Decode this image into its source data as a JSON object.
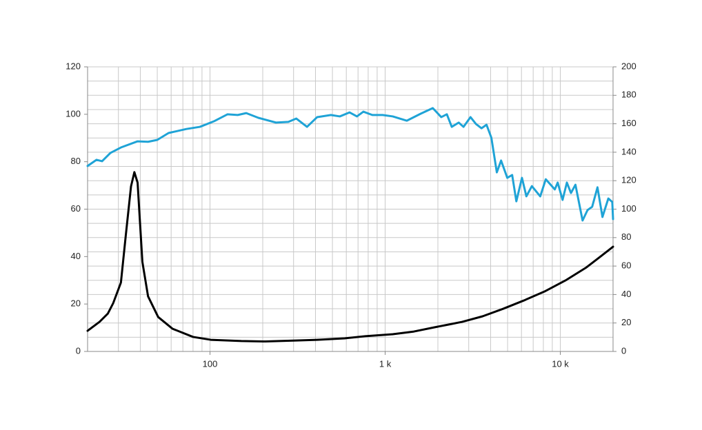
{
  "chart_data": {
    "type": "line",
    "xscale": "log",
    "grid": true,
    "xlim": [
      20,
      20000
    ],
    "xticks": [
      {
        "value": 100,
        "label": "100"
      },
      {
        "value": 1000,
        "label": "1 k"
      },
      {
        "value": 10000,
        "label": "10 k"
      }
    ],
    "xgrid": [
      20,
      30,
      40,
      50,
      60,
      70,
      80,
      90,
      100,
      200,
      300,
      400,
      500,
      600,
      700,
      800,
      900,
      1000,
      2000,
      3000,
      4000,
      5000,
      6000,
      7000,
      8000,
      9000,
      10000,
      20000
    ],
    "ylim": [
      0,
      120
    ],
    "yticks": [
      0,
      20,
      40,
      60,
      80,
      100,
      120
    ],
    "y2lim": [
      0,
      200
    ],
    "y2ticks": [
      0,
      20,
      40,
      60,
      80,
      100,
      120,
      140,
      160,
      180,
      200
    ],
    "y2grid": [
      0,
      10,
      20,
      30,
      40,
      50,
      60,
      70,
      80,
      90,
      100,
      110,
      120,
      130,
      140,
      150,
      160,
      170,
      180,
      190,
      200
    ],
    "series": [
      {
        "color": "#1fa3d6",
        "x": [
          20,
          22.5,
          24.2,
          27,
          31,
          38.6,
          44.3,
          50,
          58,
          73.3,
          87.6,
          105,
          126,
          144,
          161,
          189,
          238,
          280,
          311,
          358,
          409,
          490,
          551,
          626,
          690,
          751,
          845,
          967,
          1105,
          1330,
          1592,
          1870,
          2090,
          2250,
          2400,
          2630,
          2800,
          3070,
          3300,
          3550,
          3790,
          4040,
          4340,
          4590,
          4980,
          5310,
          5610,
          6040,
          6400,
          6880,
          7680,
          8260,
          9300,
          9660,
          10300,
          10900,
          11500,
          12200,
          13400,
          14300,
          15200,
          16300,
          17400,
          18800,
          19800,
          20000
        ],
        "values": [
          78.2,
          80.8,
          80.2,
          83.7,
          86,
          88.6,
          88.4,
          89.2,
          92.1,
          93.8,
          94.7,
          97,
          100,
          99.7,
          100.5,
          98.5,
          96.5,
          96.8,
          98.2,
          94.7,
          98.8,
          99.7,
          99.1,
          100.8,
          99.1,
          101.1,
          99.7,
          99.7,
          99.1,
          97.3,
          100.2,
          102.6,
          98.8,
          100,
          94.7,
          96.5,
          94.7,
          98.8,
          95.9,
          94.1,
          95.6,
          90.1,
          75.5,
          80.5,
          73.2,
          74.4,
          63.3,
          73.2,
          65.4,
          69.7,
          65.4,
          72.6,
          68.3,
          71.2,
          63.9,
          71.2,
          66.8,
          70.3,
          55.2,
          59.6,
          61,
          69.2,
          56.7,
          64.5,
          63,
          55.8
        ]
      },
      {
        "color": "#000000",
        "axis": "y2",
        "x": [
          20,
          23.4,
          26.1,
          28,
          31,
          33.1,
          35.4,
          37,
          38.6,
          41.1,
          44.3,
          50.6,
          61,
          80,
          101,
          151,
          207,
          311,
          409,
          587,
          771,
          1105,
          1460,
          1900,
          2300,
          2750,
          3600,
          4720,
          6190,
          8120,
          10700,
          14100,
          16800,
          20000
        ],
        "values": [
          14.5,
          20.8,
          26.6,
          33.9,
          48.4,
          82.3,
          116,
          126,
          118.6,
          63,
          38.7,
          24.2,
          16,
          10.2,
          8.2,
          7.3,
          7,
          7.7,
          8.2,
          9.2,
          10.7,
          12.1,
          14,
          16.9,
          18.9,
          20.8,
          24.7,
          30,
          35.8,
          42.1,
          49.9,
          59.1,
          66.3,
          73.6
        ]
      }
    ]
  }
}
